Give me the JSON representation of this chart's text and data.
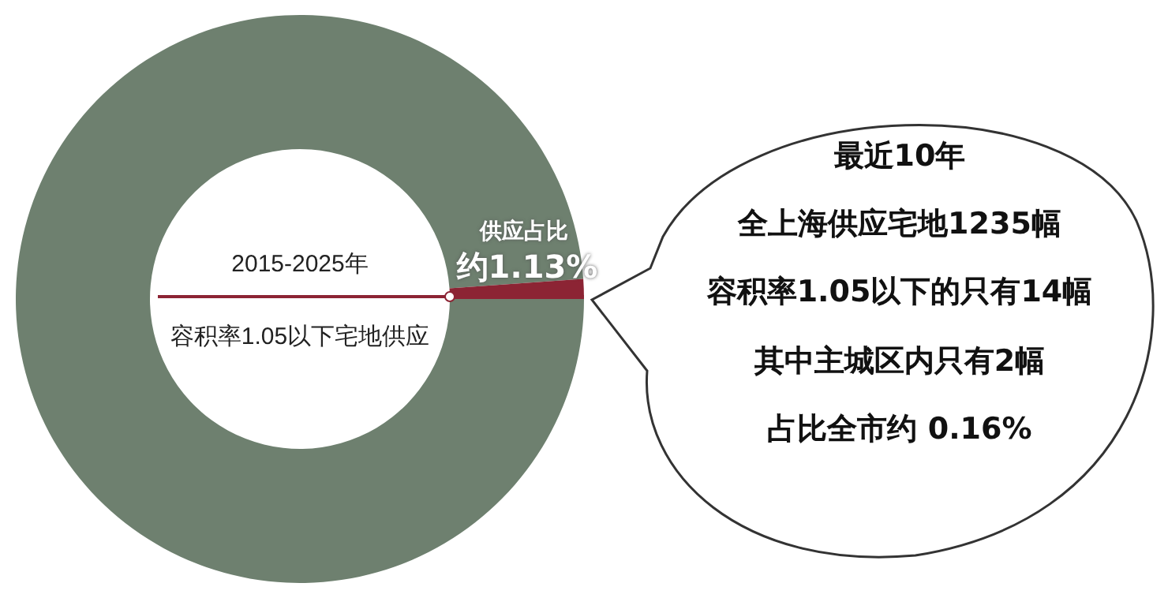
{
  "chart_data": {
    "type": "donut",
    "categories": [
      null,
      null
    ],
    "values": [
      98.87,
      1.13
    ],
    "colors": [
      "#6e806f",
      "#8c2434"
    ],
    "annotations": [
      "供应占比",
      "约1.13%",
      "2015-2025年",
      "容积率1.05以下宅地供应",
      "最近10年",
      "全上海供应宅地1235幅",
      "容积率1.05以下的只有14幅",
      "其中主城区内只有2幅",
      "占比全市约 0.16%"
    ]
  }
}
